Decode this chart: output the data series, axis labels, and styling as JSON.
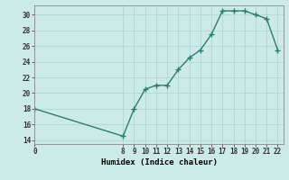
{
  "xlabel": "Humidex (Indice chaleur)",
  "x": [
    0,
    8,
    9,
    10,
    11,
    12,
    13,
    14,
    15,
    16,
    17,
    18,
    19,
    20,
    21,
    22
  ],
  "y": [
    18,
    14.5,
    18,
    20.5,
    21,
    21,
    23,
    24.5,
    25.5,
    27.5,
    30.5,
    30.5,
    30.5,
    30,
    29.5,
    25.5
  ],
  "xlim": [
    0,
    22.5
  ],
  "ylim": [
    13.5,
    31.2
  ],
  "yticks": [
    14,
    16,
    18,
    20,
    22,
    24,
    26,
    28,
    30
  ],
  "xticks": [
    0,
    8,
    9,
    10,
    11,
    12,
    13,
    14,
    15,
    16,
    17,
    18,
    19,
    20,
    21,
    22
  ],
  "line_color": "#2d7d6e",
  "bg_color": "#cceae8",
  "grid_color": "#aad4d2",
  "title_fontsize": 7
}
